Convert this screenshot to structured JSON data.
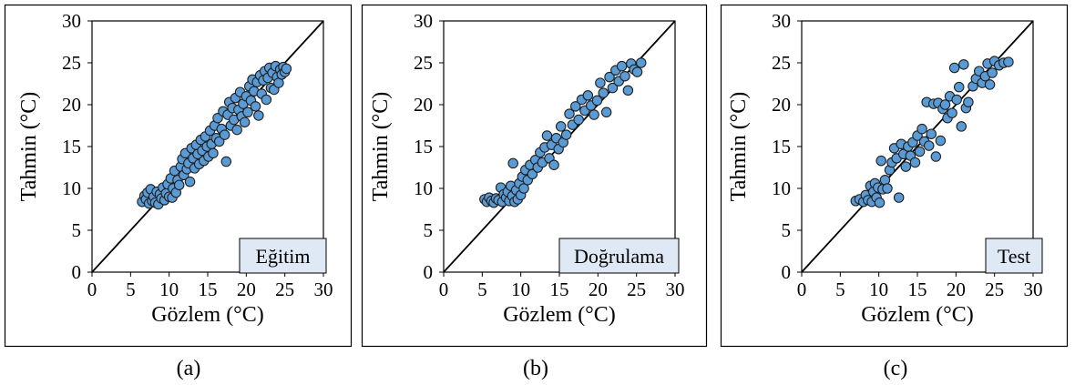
{
  "panel_labels": [
    "(a)",
    "(b)",
    "(c)"
  ],
  "chart_data": [
    {
      "type": "scatter",
      "title": "",
      "legend_label": "Eğitim",
      "xlabel": "Gözlem (°C)",
      "ylabel": "Tahmin (°C)",
      "xlim": [
        0,
        30
      ],
      "ylim": [
        0,
        30
      ],
      "xticks": [
        0,
        5,
        10,
        15,
        20,
        25,
        30
      ],
      "yticks": [
        0,
        5,
        10,
        15,
        20,
        25,
        30
      ],
      "reference_line": [
        [
          0,
          0
        ],
        [
          30,
          30
        ]
      ],
      "marker_color": "#5b9bd5",
      "legend_placement": "bottom-right",
      "grid": false,
      "points": [
        [
          6.5,
          8.4
        ],
        [
          6.8,
          9.1
        ],
        [
          7.0,
          8.7
        ],
        [
          7.2,
          9.5
        ],
        [
          7.4,
          8.2
        ],
        [
          7.6,
          9.9
        ],
        [
          7.8,
          8.5
        ],
        [
          8.0,
          9.0
        ],
        [
          8.2,
          8.3
        ],
        [
          8.4,
          9.6
        ],
        [
          8.6,
          8.1
        ],
        [
          8.8,
          9.3
        ],
        [
          9.0,
          8.8
        ],
        [
          9.2,
          10.1
        ],
        [
          9.4,
          8.6
        ],
        [
          9.6,
          9.4
        ],
        [
          9.8,
          10.5
        ],
        [
          10.0,
          9.0
        ],
        [
          10.2,
          11.2
        ],
        [
          10.4,
          8.9
        ],
        [
          10.5,
          10.0
        ],
        [
          10.7,
          12.1
        ],
        [
          10.9,
          9.5
        ],
        [
          11.1,
          11.0
        ],
        [
          11.3,
          10.4
        ],
        [
          11.5,
          12.6
        ],
        [
          11.7,
          13.5
        ],
        [
          11.9,
          11.6
        ],
        [
          12.1,
          14.2
        ],
        [
          12.3,
          12.3
        ],
        [
          12.5,
          13.0
        ],
        [
          12.7,
          10.8
        ],
        [
          12.9,
          14.8
        ],
        [
          13.1,
          13.6
        ],
        [
          13.3,
          12.4
        ],
        [
          13.5,
          15.2
        ],
        [
          13.7,
          14.1
        ],
        [
          13.9,
          12.9
        ],
        [
          14.1,
          15.8
        ],
        [
          14.3,
          14.5
        ],
        [
          14.5,
          13.3
        ],
        [
          14.7,
          16.2
        ],
        [
          14.9,
          15.0
        ],
        [
          15.1,
          13.8
        ],
        [
          15.3,
          16.9
        ],
        [
          15.5,
          15.3
        ],
        [
          15.7,
          14.2
        ],
        [
          15.9,
          17.5
        ],
        [
          16.1,
          16.0
        ],
        [
          16.3,
          18.4
        ],
        [
          16.5,
          15.6
        ],
        [
          16.8,
          17.1
        ],
        [
          17.0,
          19.2
        ],
        [
          17.2,
          16.4
        ],
        [
          17.4,
          13.2
        ],
        [
          17.6,
          18.8
        ],
        [
          17.8,
          20.3
        ],
        [
          18.0,
          17.5
        ],
        [
          18.2,
          19.6
        ],
        [
          18.4,
          18.2
        ],
        [
          18.6,
          20.8
        ],
        [
          18.8,
          17.0
        ],
        [
          19.0,
          19.4
        ],
        [
          19.2,
          21.5
        ],
        [
          19.4,
          18.6
        ],
        [
          19.6,
          20.1
        ],
        [
          19.8,
          17.9
        ],
        [
          20.0,
          21.0
        ],
        [
          20.2,
          19.1
        ],
        [
          20.4,
          22.2
        ],
        [
          20.6,
          20.5
        ],
        [
          20.8,
          23.0
        ],
        [
          21.0,
          21.6
        ],
        [
          21.2,
          19.8
        ],
        [
          21.4,
          22.7
        ],
        [
          21.6,
          18.7
        ],
        [
          21.8,
          23.5
        ],
        [
          22.0,
          21.3
        ],
        [
          22.2,
          22.9
        ],
        [
          22.4,
          24.0
        ],
        [
          22.6,
          20.6
        ],
        [
          22.8,
          23.2
        ],
        [
          23.0,
          24.4
        ],
        [
          23.2,
          22.0
        ],
        [
          23.4,
          23.8
        ],
        [
          23.6,
          21.8
        ],
        [
          23.8,
          24.6
        ],
        [
          24.0,
          23.3
        ],
        [
          24.2,
          22.6
        ],
        [
          24.4,
          24.2
        ],
        [
          24.6,
          23.6
        ],
        [
          24.8,
          24.5
        ],
        [
          25.0,
          23.9
        ],
        [
          25.2,
          24.3
        ]
      ]
    },
    {
      "type": "scatter",
      "title": "",
      "legend_label": "Doğrulama",
      "xlabel": "Gözlem (°C)",
      "ylabel": "Tahmin (°C)",
      "xlim": [
        0,
        30
      ],
      "ylim": [
        0,
        30
      ],
      "xticks": [
        0,
        5,
        10,
        15,
        20,
        25,
        30
      ],
      "yticks": [
        0,
        5,
        10,
        15,
        20,
        25,
        30
      ],
      "reference_line": [
        [
          0,
          0
        ],
        [
          30,
          30
        ]
      ],
      "marker_color": "#5b9bd5",
      "legend_placement": "bottom-right",
      "grid": false,
      "points": [
        [
          5.3,
          8.7
        ],
        [
          5.6,
          8.4
        ],
        [
          5.9,
          8.9
        ],
        [
          6.2,
          8.5
        ],
        [
          6.5,
          8.3
        ],
        [
          6.8,
          8.8
        ],
        [
          7.1,
          8.6
        ],
        [
          7.4,
          10.1
        ],
        [
          7.6,
          8.4
        ],
        [
          7.8,
          9.3
        ],
        [
          8.1,
          8.9
        ],
        [
          8.3,
          9.6
        ],
        [
          8.5,
          8.5
        ],
        [
          8.7,
          10.3
        ],
        [
          8.9,
          9.1
        ],
        [
          9.0,
          13.0
        ],
        [
          9.2,
          8.4
        ],
        [
          9.4,
          9.8
        ],
        [
          9.6,
          8.7
        ],
        [
          9.8,
          10.6
        ],
        [
          10.0,
          9.2
        ],
        [
          10.2,
          11.4
        ],
        [
          10.4,
          10.0
        ],
        [
          10.6,
          12.2
        ],
        [
          10.9,
          11.0
        ],
        [
          11.2,
          12.8
        ],
        [
          11.5,
          11.7
        ],
        [
          11.9,
          13.4
        ],
        [
          12.2,
          12.5
        ],
        [
          12.5,
          14.3
        ],
        [
          12.8,
          13.1
        ],
        [
          13.1,
          14.9
        ],
        [
          13.4,
          16.3
        ],
        [
          13.7,
          13.6
        ],
        [
          14.0,
          15.2
        ],
        [
          14.3,
          12.8
        ],
        [
          14.6,
          16.0
        ],
        [
          14.9,
          14.7
        ],
        [
          15.2,
          17.4
        ],
        [
          15.5,
          15.5
        ],
        [
          15.9,
          16.4
        ],
        [
          16.3,
          18.9
        ],
        [
          16.7,
          17.6
        ],
        [
          17.1,
          19.8
        ],
        [
          17.5,
          18.2
        ],
        [
          17.9,
          20.6
        ],
        [
          18.3,
          19.3
        ],
        [
          18.7,
          21.1
        ],
        [
          19.1,
          19.9
        ],
        [
          19.5,
          18.8
        ],
        [
          19.9,
          20.5
        ],
        [
          20.3,
          22.6
        ],
        [
          20.7,
          21.4
        ],
        [
          21.1,
          19.1
        ],
        [
          21.5,
          23.3
        ],
        [
          21.9,
          22.0
        ],
        [
          22.3,
          24.1
        ],
        [
          22.7,
          22.8
        ],
        [
          23.1,
          24.6
        ],
        [
          23.5,
          23.4
        ],
        [
          23.9,
          21.7
        ],
        [
          24.3,
          24.9
        ],
        [
          24.7,
          24.2
        ],
        [
          25.1,
          23.9
        ],
        [
          25.6,
          25.0
        ]
      ]
    },
    {
      "type": "scatter",
      "title": "",
      "legend_label": "Test",
      "xlabel": "Gözlem (°C)",
      "ylabel": "Tahmin (°C)",
      "xlim": [
        0,
        30
      ],
      "ylim": [
        0,
        30
      ],
      "xticks": [
        0,
        5,
        10,
        15,
        20,
        25,
        30
      ],
      "yticks": [
        0,
        5,
        10,
        15,
        20,
        25,
        30
      ],
      "reference_line": [
        [
          0,
          0
        ],
        [
          30,
          30
        ]
      ],
      "marker_color": "#5b9bd5",
      "legend_placement": "bottom-right",
      "grid": false,
      "points": [
        [
          7.0,
          8.5
        ],
        [
          7.5,
          8.7
        ],
        [
          8.0,
          8.4
        ],
        [
          8.3,
          9.2
        ],
        [
          8.6,
          8.6
        ],
        [
          8.9,
          10.3
        ],
        [
          9.1,
          8.4
        ],
        [
          9.3,
          9.6
        ],
        [
          9.5,
          10.6
        ],
        [
          9.7,
          8.9
        ],
        [
          9.9,
          10.1
        ],
        [
          10.1,
          8.3
        ],
        [
          10.3,
          13.3
        ],
        [
          10.5,
          9.9
        ],
        [
          10.8,
          11.0
        ],
        [
          11.1,
          10.0
        ],
        [
          11.4,
          12.2
        ],
        [
          11.7,
          13.1
        ],
        [
          12.0,
          14.8
        ],
        [
          12.3,
          13.6
        ],
        [
          12.6,
          8.9
        ],
        [
          12.9,
          15.3
        ],
        [
          13.2,
          14.1
        ],
        [
          13.5,
          12.6
        ],
        [
          13.8,
          15.0
        ],
        [
          14.1,
          13.9
        ],
        [
          14.4,
          15.5
        ],
        [
          14.7,
          13.1
        ],
        [
          15.0,
          16.3
        ],
        [
          15.3,
          14.4
        ],
        [
          15.6,
          17.1
        ],
        [
          15.9,
          15.6
        ],
        [
          16.2,
          20.3
        ],
        [
          16.5,
          15.1
        ],
        [
          16.8,
          16.5
        ],
        [
          17.1,
          20.1
        ],
        [
          17.4,
          13.8
        ],
        [
          17.7,
          20.2
        ],
        [
          18.0,
          15.7
        ],
        [
          18.3,
          19.5
        ],
        [
          18.6,
          20.0
        ],
        [
          18.9,
          18.4
        ],
        [
          19.2,
          21.0
        ],
        [
          19.5,
          19.0
        ],
        [
          19.8,
          24.4
        ],
        [
          20.1,
          20.6
        ],
        [
          20.4,
          22.1
        ],
        [
          20.7,
          17.4
        ],
        [
          21.0,
          24.8
        ],
        [
          21.3,
          19.6
        ],
        [
          21.6,
          20.3
        ],
        [
          22.2,
          22.2
        ],
        [
          22.6,
          23.1
        ],
        [
          23.0,
          24.0
        ],
        [
          23.4,
          22.6
        ],
        [
          23.8,
          23.4
        ],
        [
          24.1,
          24.9
        ],
        [
          24.4,
          22.4
        ],
        [
          24.7,
          23.8
        ],
        [
          25.0,
          25.2
        ],
        [
          25.6,
          24.7
        ],
        [
          26.2,
          25.0
        ],
        [
          26.8,
          25.1
        ]
      ]
    }
  ]
}
